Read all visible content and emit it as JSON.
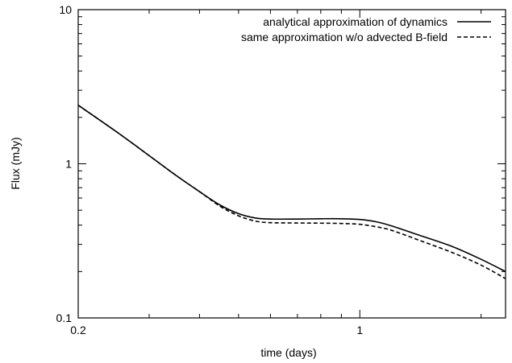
{
  "chart_data": {
    "type": "line",
    "xlabel": "time (days)",
    "ylabel": "Flux (mJy)",
    "x_scale": "log",
    "y_scale": "log",
    "xlim": [
      0.2,
      2.3
    ],
    "ylim": [
      0.1,
      10
    ],
    "x_ticks": [
      {
        "value": 0.2,
        "label": "0.2"
      },
      {
        "value": 1,
        "label": "1"
      }
    ],
    "y_ticks": [
      {
        "value": 0.1,
        "label": "0.1"
      },
      {
        "value": 1,
        "label": "1"
      },
      {
        "value": 10,
        "label": "10"
      }
    ],
    "legend_position": "top-right",
    "grid": false,
    "series": [
      {
        "name": "analytical approximation of dynamics",
        "style": "solid",
        "color": "#000000",
        "points": [
          [
            0.2,
            2.4
          ],
          [
            0.25,
            1.6
          ],
          [
            0.3,
            1.13
          ],
          [
            0.35,
            0.84
          ],
          [
            0.4,
            0.66
          ],
          [
            0.45,
            0.54
          ],
          [
            0.5,
            0.475
          ],
          [
            0.55,
            0.445
          ],
          [
            0.6,
            0.438
          ],
          [
            0.7,
            0.438
          ],
          [
            0.8,
            0.44
          ],
          [
            0.9,
            0.44
          ],
          [
            1.0,
            0.435
          ],
          [
            1.1,
            0.42
          ],
          [
            1.2,
            0.395
          ],
          [
            1.4,
            0.345
          ],
          [
            1.7,
            0.29
          ],
          [
            2.0,
            0.24
          ],
          [
            2.3,
            0.2
          ]
        ]
      },
      {
        "name": "same approximation w/o advected B-field",
        "style": "dashed",
        "color": "#000000",
        "points": [
          [
            0.2,
            2.4
          ],
          [
            0.25,
            1.6
          ],
          [
            0.3,
            1.13
          ],
          [
            0.35,
            0.84
          ],
          [
            0.4,
            0.66
          ],
          [
            0.45,
            0.53
          ],
          [
            0.5,
            0.46
          ],
          [
            0.55,
            0.425
          ],
          [
            0.6,
            0.415
          ],
          [
            0.7,
            0.413
          ],
          [
            0.8,
            0.412
          ],
          [
            0.9,
            0.41
          ],
          [
            1.0,
            0.405
          ],
          [
            1.1,
            0.39
          ],
          [
            1.2,
            0.37
          ],
          [
            1.4,
            0.32
          ],
          [
            1.7,
            0.265
          ],
          [
            2.0,
            0.22
          ],
          [
            2.3,
            0.18
          ]
        ]
      }
    ]
  }
}
